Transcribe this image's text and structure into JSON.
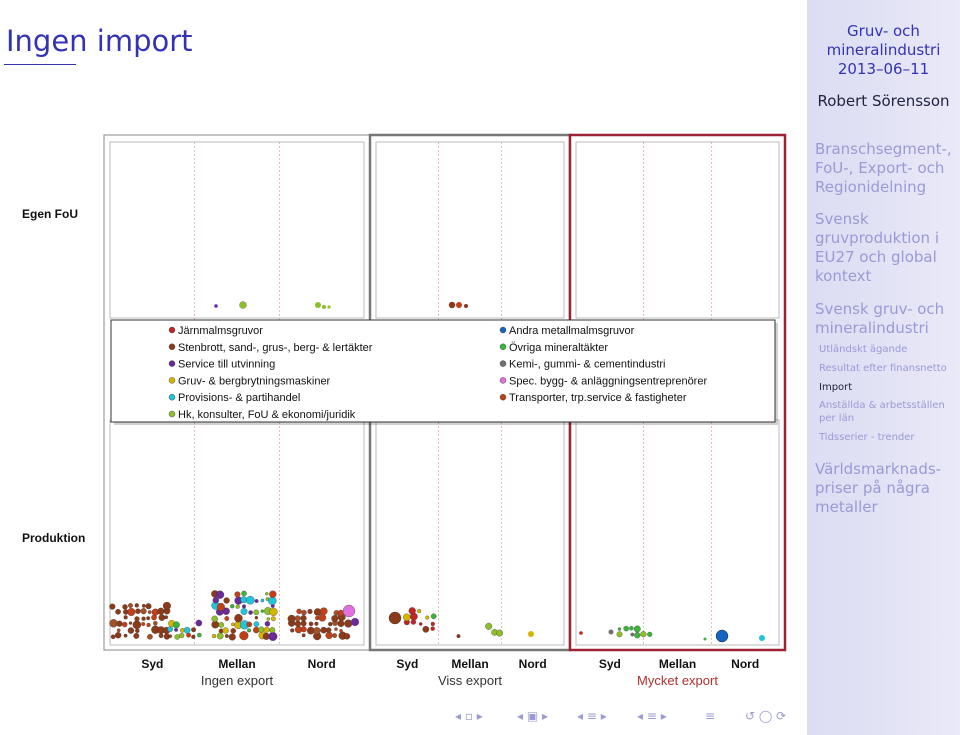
{
  "slide": {
    "title": "Ingen import"
  },
  "sidebar": {
    "header_line1": "Gruv- och",
    "header_line2": "mineralindustri",
    "date": "2013–06–11",
    "author": "Robert Sörensson",
    "sections": [
      {
        "label": "Branschsegment-, FoU-, Export- och Regionidelning"
      },
      {
        "label": "Svensk gruvproduktion i EU27 och global kontext"
      },
      {
        "label": "Svensk gruv- och mineralindustri"
      },
      {
        "label": "Världsmarknads-priser på några metaller"
      }
    ],
    "subsections": [
      {
        "label": "Utländskt ägande"
      },
      {
        "label": "Resultat efter finansnetto"
      },
      {
        "label": "Import"
      },
      {
        "label": "Anställda & arbetsställen per län"
      },
      {
        "label": "Tidsserier - trender"
      }
    ]
  },
  "nav": {
    "icons": [
      "nav-first-icon",
      "nav-frame-icon",
      "nav-next-icon",
      "nav-subsection-icon",
      "nav-section-icon",
      "nav-list-icon",
      "nav-search-icon"
    ]
  },
  "chart_data": {
    "type": "scatter",
    "row_labels": [
      "Egen FoU",
      "Produktion"
    ],
    "panels": [
      {
        "export_label": "Ingen export",
        "highlight": "#888888"
      },
      {
        "export_label": "Viss export",
        "highlight": "#777777"
      },
      {
        "export_label": "Mycket export",
        "highlight": "#9b2335"
      }
    ],
    "region_labels": [
      "Syd",
      "Mellan",
      "Nord"
    ],
    "legend_position": "inside-overlay-top",
    "legend": [
      {
        "name": "Järnmalmsgruvor",
        "color": "#c02626"
      },
      {
        "name": "Stenbrott, sand-, grus-, berg- & lertäkter",
        "color": "#8b3a1a"
      },
      {
        "name": "Service till utvinning",
        "color": "#6a2a9a"
      },
      {
        "name": "Gruv- & bergbrytningsmaskiner",
        "color": "#d6b400"
      },
      {
        "name": "Provisions- & partihandel",
        "color": "#22c4d8"
      },
      {
        "name": "Hk, konsulter, FoU & ekonomi/juridik",
        "color": "#8cbf2a"
      },
      {
        "name": "Andra metallmalmsgruvor",
        "color": "#1565c0"
      },
      {
        "name": "Övriga mineraltäkter",
        "color": "#3cb43c"
      },
      {
        "name": "Kemi-, gummi- & cementindustri",
        "color": "#707070"
      },
      {
        "name": "Spec. bygg- & anläggningsentreprenörer",
        "color": "#e070e0"
      },
      {
        "name": "Transporter, trp.service & fastigheter",
        "color": "#c0401a"
      }
    ]
  }
}
